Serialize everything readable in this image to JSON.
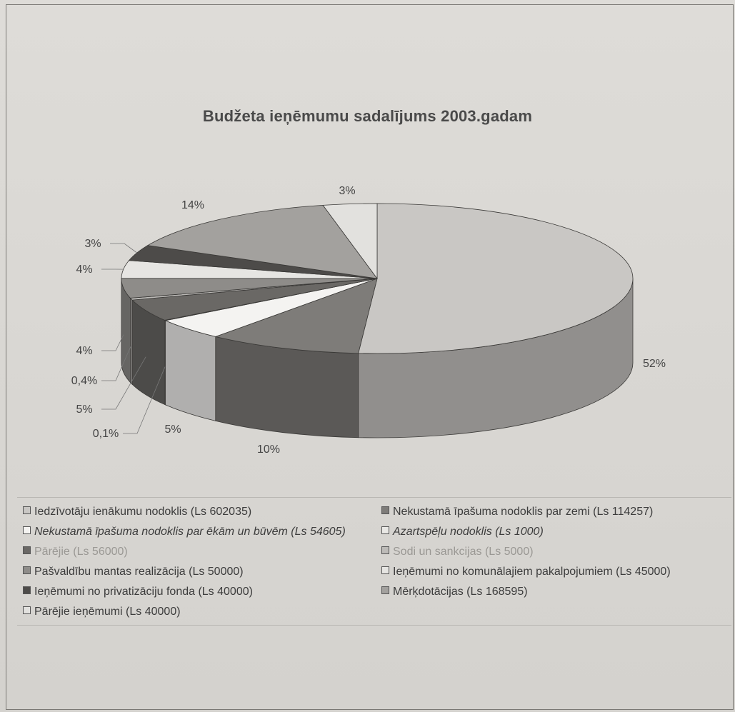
{
  "chart_data": {
    "type": "pie",
    "title": "Budžeta ieņēmumu sadalījums 2003.gadam",
    "slices": [
      {
        "label": "Iedzīvotāju ienākumu nodoklis (Ls 602035)",
        "value": 602035,
        "pct_label": "52%",
        "color": "#c9c7c4"
      },
      {
        "label": "Nekustamā īpašuma nodoklis par zemi (Ls 114257)",
        "value": 114257,
        "pct_label": "10%",
        "color": "#7e7c79"
      },
      {
        "label": "Nekustamā īpašuma nodoklis par ēkām un būvēm (Ls 54605)",
        "value": 54605,
        "pct_label": "5%",
        "color": "#f4f3f1"
      },
      {
        "label": "Azartspēļu nodoklis (Ls 1000)",
        "value": 1000,
        "pct_label": "0,1%",
        "color": "#e9e8e5"
      },
      {
        "label": "Pārējie (Ls 56000)",
        "value": 56000,
        "pct_label": "5%",
        "color": "#6a6865"
      },
      {
        "label": "Sodi un sankcijas (Ls 5000)",
        "value": 5000,
        "pct_label": "0,4%",
        "color": "#bdbbb8"
      },
      {
        "label": "Pašvaldību mantas realizācija (Ls 50000)",
        "value": 50000,
        "pct_label": "4%",
        "color": "#8e8c89"
      },
      {
        "label": "Ieņēmumi no komunālajiem pakalpojumiem (Ls 45000)",
        "value": 45000,
        "pct_label": "4%",
        "color": "#e6e5e2"
      },
      {
        "label": "Ieņēmumi no privatizāciju fonda (Ls 40000)",
        "value": 40000,
        "pct_label": "3%",
        "color": "#4d4b49"
      },
      {
        "label": "Mērķdotācijas (Ls 168595)",
        "value": 168595,
        "pct_label": "14%",
        "color": "#a3a19e"
      },
      {
        "label": "Pārējie ieņēmumi (Ls 40000)",
        "value": 40000,
        "pct_label": "3%",
        "color": "#e2e1de"
      }
    ],
    "legend_placement": "bottom"
  },
  "legend": [
    {
      "text": "Iedzīvotāju ienākumu nodoklis (Ls 602035)",
      "style": "normal"
    },
    {
      "text": "Nekustamā īpašuma nodoklis par zemi (Ls 114257)",
      "style": "normal"
    },
    {
      "text": "Nekustamā īpašuma nodoklis par ēkām un būvēm (Ls 54605)",
      "style": "italic"
    },
    {
      "text": "Azartspēļu nodoklis (Ls 1000)",
      "style": "italic"
    },
    {
      "text": "Pārējie (Ls 56000)",
      "style": "faint"
    },
    {
      "text": "Sodi un sankcijas (Ls 5000)",
      "style": "faint"
    },
    {
      "text": "Pašvaldību mantas realizācija (Ls 50000)",
      "style": "normal"
    },
    {
      "text": "Ieņēmumi no komunālajiem pakalpojumiem (Ls 45000)",
      "style": "normal"
    },
    {
      "text": "Ieņēmumi no privatizāciju fonda (Ls 40000)",
      "style": "normal"
    },
    {
      "text": "Mērķdotācijas (Ls 168595)",
      "style": "normal"
    },
    {
      "text": "Pārējie ieņēmumi (Ls 40000)",
      "style": "normal"
    }
  ]
}
